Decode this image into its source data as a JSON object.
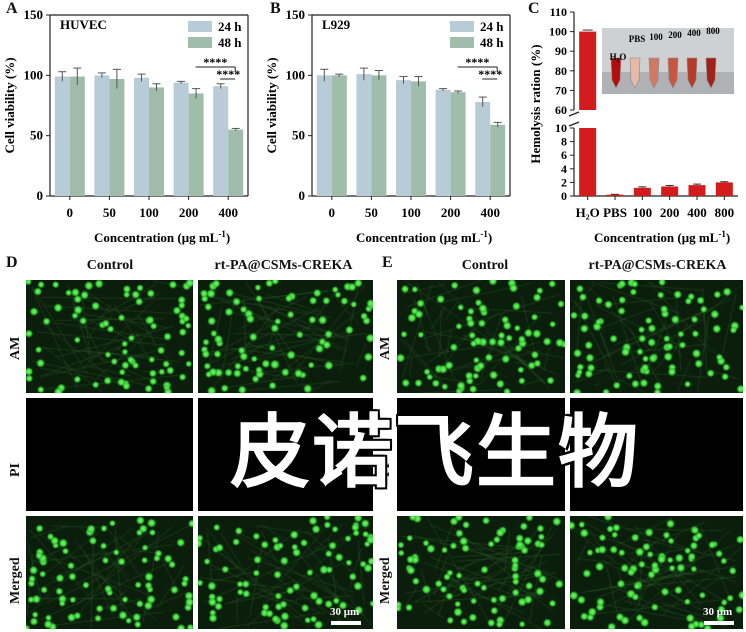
{
  "panels": {
    "A": {
      "letter": "A",
      "title": "HUVEC"
    },
    "B": {
      "letter": "B",
      "title": "L929"
    },
    "C": {
      "letter": "C"
    },
    "D": {
      "letter": "D",
      "col1": "Control",
      "col2": "rt-PA@CSMs-CREKA",
      "rows": [
        "AM",
        "PI",
        "Merged"
      ],
      "scale": "30 μm"
    },
    "E": {
      "letter": "E",
      "col1": "Control",
      "col2": "rt-PA@CSMs-CREKA",
      "rows": [
        "AM",
        "PI",
        "Merged"
      ],
      "scale": "30 μm"
    }
  },
  "watermark": "皮诺飞生物",
  "colors": {
    "bar24": "#b8ccd8",
    "bar48": "#9fbdaa",
    "hemo": "#d31d1d",
    "cells": "#3ad53a"
  },
  "chart_data": [
    {
      "type": "bar",
      "title": "HUVEC",
      "categories": [
        "0",
        "50",
        "100",
        "200",
        "400"
      ],
      "series": [
        {
          "name": "24 h",
          "values": [
            99,
            100,
            98,
            94,
            91
          ],
          "errors": [
            4,
            2,
            3,
            1,
            2
          ]
        },
        {
          "name": "48 h",
          "values": [
            99,
            97,
            90,
            85,
            55
          ],
          "errors": [
            7,
            8,
            3,
            4,
            1
          ]
        }
      ],
      "xlabel": "Concentration (μg mL⁻¹)",
      "ylabel": "Cell viability (%)",
      "ylim": [
        0,
        150
      ],
      "yticks": [
        "0",
        "50",
        "100",
        "150"
      ],
      "legend_position": "top-right",
      "annotations": [
        "****",
        "****"
      ]
    },
    {
      "type": "bar",
      "title": "L929",
      "categories": [
        "0",
        "50",
        "100",
        "200",
        "400"
      ],
      "series": [
        {
          "name": "24 h",
          "values": [
            100,
            101,
            96,
            88,
            78
          ],
          "errors": [
            5,
            5,
            3,
            1,
            4
          ]
        },
        {
          "name": "48 h",
          "values": [
            100,
            100,
            95,
            86,
            59
          ],
          "errors": [
            1,
            4,
            4,
            1,
            2
          ]
        }
      ],
      "xlabel": "Concentration (μg mL⁻¹)",
      "ylabel": "Cell viability (%)",
      "ylim": [
        0,
        150
      ],
      "yticks": [
        "0",
        "50",
        "100",
        "150"
      ],
      "legend_position": "top-right",
      "annotations": [
        "****",
        "****"
      ]
    },
    {
      "type": "bar",
      "categories": [
        "H₂O",
        "PBS",
        "100",
        "200",
        "400",
        "800"
      ],
      "values": [
        100,
        0.2,
        1.2,
        1.4,
        1.6,
        2.0
      ],
      "errors": [
        0.8,
        0.05,
        0.15,
        0.15,
        0.15,
        0.1
      ],
      "xlabel": "Concentration (μg mL⁻¹)",
      "ylabel": "Hemolysis ration (%)",
      "y_break": [
        10,
        60
      ],
      "yticks_upper": [
        "60",
        "70",
        "80",
        "90",
        "100",
        "110"
      ],
      "yticks_lower": [
        "0",
        "2",
        "4",
        "6",
        "8",
        "10"
      ],
      "inset_labels": [
        "H₂O",
        "PBS",
        "100",
        "200",
        "400",
        "800"
      ]
    }
  ]
}
